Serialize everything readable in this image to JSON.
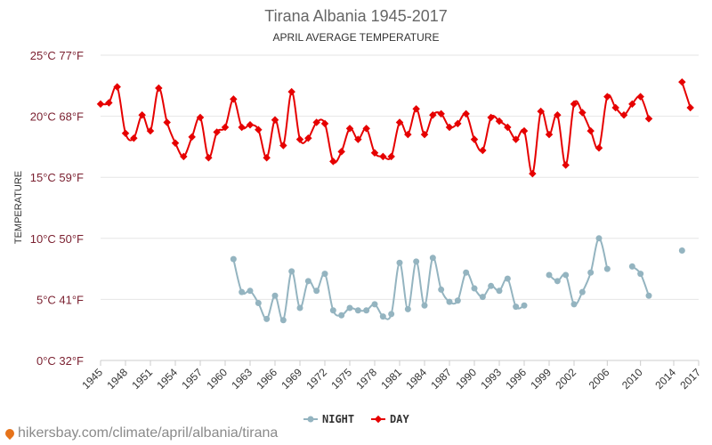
{
  "footer": {
    "url": "hikersbay.com/climate/april/albania/tirana",
    "pin_icon": "location-pin-icon"
  },
  "colors": {
    "day": "#e60000",
    "night": "#94b4c0",
    "grid": "#e6e6e6",
    "ytick": "#7a1f2f",
    "title": "#666666"
  },
  "chart_data": {
    "type": "line",
    "title": "Tirana Albania 1945-2017",
    "subtitle": "APRIL AVERAGE TEMPERATURE",
    "ylabel": "TEMPERATURE",
    "xlabel": "",
    "ylim": [
      0,
      25
    ],
    "yticks": [
      {
        "value": 0,
        "label": "0°C 32°F"
      },
      {
        "value": 5,
        "label": "5°C 41°F"
      },
      {
        "value": 10,
        "label": "10°C 50°F"
      },
      {
        "value": 15,
        "label": "15°C 59°F"
      },
      {
        "value": 20,
        "label": "20°C 68°F"
      },
      {
        "value": 25,
        "label": "25°C 77°F"
      }
    ],
    "xlim": [
      1945,
      2017
    ],
    "xticks": [
      1945,
      1948,
      1951,
      1954,
      1957,
      1960,
      1963,
      1966,
      1969,
      1972,
      1975,
      1978,
      1981,
      1984,
      1987,
      1990,
      1993,
      1996,
      1999,
      2002,
      2006,
      2010,
      2014,
      2017
    ],
    "grid": true,
    "legend_position": "bottom-center",
    "series": [
      {
        "name": "NIGHT",
        "color": "#94b4c0",
        "points": [
          [
            1961,
            8.3
          ],
          [
            1962,
            5.6
          ],
          [
            1963,
            5.7
          ],
          [
            1964,
            4.7
          ],
          [
            1965,
            3.4
          ],
          [
            1966,
            5.3
          ],
          [
            1967,
            3.3
          ],
          [
            1968,
            7.3
          ],
          [
            1969,
            4.3
          ],
          [
            1970,
            6.5
          ],
          [
            1971,
            5.7
          ],
          [
            1972,
            7.1
          ],
          [
            1973,
            4.1
          ],
          [
            1974,
            3.7
          ],
          [
            1975,
            4.3
          ],
          [
            1976,
            4.1
          ],
          [
            1977,
            4.1
          ],
          [
            1978,
            4.6
          ],
          [
            1979,
            3.6
          ],
          [
            1980,
            3.8
          ],
          [
            1981,
            8.0
          ],
          [
            1982,
            4.2
          ],
          [
            1983,
            8.1
          ],
          [
            1984,
            4.5
          ],
          [
            1985,
            8.4
          ],
          [
            1986,
            5.8
          ],
          [
            1987,
            4.8
          ],
          [
            1988,
            4.9
          ],
          [
            1989,
            7.2
          ],
          [
            1990,
            5.9
          ],
          [
            1991,
            5.2
          ],
          [
            1992,
            6.1
          ],
          [
            1993,
            5.7
          ],
          [
            1994,
            6.7
          ],
          [
            1995,
            4.4
          ],
          [
            1996,
            4.5
          ],
          null,
          [
            1999,
            7.0
          ],
          [
            2000,
            6.5
          ],
          [
            2001,
            7.0
          ],
          [
            2002,
            4.6
          ],
          [
            2003,
            5.6
          ],
          [
            2004,
            7.2
          ],
          [
            2005,
            10.0
          ],
          [
            2006,
            7.5
          ],
          null,
          [
            2009,
            7.7
          ],
          [
            2010,
            7.1
          ],
          [
            2011,
            5.3
          ],
          null,
          [
            2015,
            9.0
          ]
        ]
      },
      {
        "name": "DAY",
        "color": "#e60000",
        "points": [
          [
            1945,
            21.0
          ],
          [
            1946,
            21.1
          ],
          [
            1947,
            22.4
          ],
          [
            1948,
            18.6
          ],
          [
            1949,
            18.2
          ],
          [
            1950,
            20.1
          ],
          [
            1951,
            18.8
          ],
          [
            1952,
            22.3
          ],
          [
            1953,
            19.5
          ],
          [
            1954,
            17.8
          ],
          [
            1955,
            16.7
          ],
          [
            1956,
            18.3
          ],
          [
            1957,
            19.9
          ],
          [
            1958,
            16.6
          ],
          [
            1959,
            18.7
          ],
          [
            1960,
            19.1
          ],
          [
            1961,
            21.4
          ],
          [
            1962,
            19.1
          ],
          [
            1963,
            19.3
          ],
          [
            1964,
            18.9
          ],
          [
            1965,
            16.6
          ],
          [
            1966,
            19.7
          ],
          [
            1967,
            17.6
          ],
          [
            1968,
            22.0
          ],
          [
            1969,
            18.1
          ],
          [
            1970,
            18.2
          ],
          [
            1971,
            19.5
          ],
          [
            1972,
            19.4
          ],
          [
            1973,
            16.3
          ],
          [
            1974,
            17.1
          ],
          [
            1975,
            19.0
          ],
          [
            1976,
            18.1
          ],
          [
            1977,
            19.0
          ],
          [
            1978,
            17.0
          ],
          [
            1979,
            16.7
          ],
          [
            1980,
            16.7
          ],
          [
            1981,
            19.5
          ],
          [
            1982,
            18.5
          ],
          [
            1983,
            20.6
          ],
          [
            1984,
            18.5
          ],
          [
            1985,
            20.1
          ],
          [
            1986,
            20.2
          ],
          [
            1987,
            19.1
          ],
          [
            1988,
            19.4
          ],
          [
            1989,
            20.2
          ],
          [
            1990,
            18.1
          ],
          [
            1991,
            17.2
          ],
          [
            1992,
            19.9
          ],
          [
            1993,
            19.6
          ],
          [
            1994,
            19.1
          ],
          [
            1995,
            18.1
          ],
          [
            1996,
            18.8
          ],
          [
            1997,
            15.3
          ],
          [
            1998,
            20.4
          ],
          [
            1999,
            18.5
          ],
          [
            2000,
            20.1
          ],
          [
            2001,
            16.0
          ],
          [
            2002,
            21.0
          ],
          [
            2003,
            20.3
          ],
          [
            2004,
            18.8
          ],
          [
            2005,
            17.4
          ],
          [
            2006,
            21.6
          ],
          [
            2007,
            20.7
          ],
          [
            2008,
            20.1
          ],
          [
            2009,
            21.0
          ],
          [
            2010,
            21.6
          ],
          [
            2011,
            19.8
          ],
          null,
          [
            2015,
            22.8
          ],
          [
            2016,
            20.7
          ]
        ]
      }
    ]
  }
}
